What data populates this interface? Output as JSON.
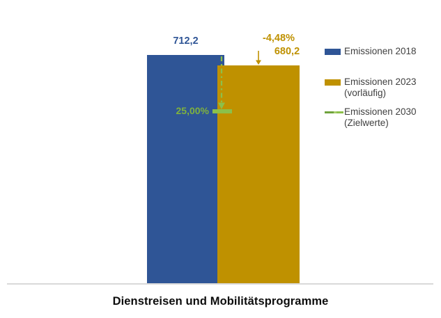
{
  "title": "Dienstreisen und Mobilitätsprogramme",
  "labels": {
    "value_2018": "712,2",
    "change_2023": "-4,48%",
    "value_2023": "680,2",
    "target_pct": "25,00%"
  },
  "legend": [
    {
      "line1": "Emissionen 2018",
      "line2": "",
      "swatch": "box",
      "color": "#2F5596"
    },
    {
      "line1": "Emissionen 2023",
      "line2": "(vorläufig)",
      "swatch": "box",
      "color": "#BF9100"
    },
    {
      "line1": "Emissionen 2030",
      "line2": "(Zielwerte)",
      "swatch": "dash-line",
      "color": "#8CC04A"
    }
  ],
  "colors": {
    "bar_2018": "#2F5596",
    "bar_2023": "#BF9100",
    "target_green": "#8CC04A",
    "target_text_green": "#7FB23E",
    "axis_gray": "#D9D9D9",
    "legend_text": "#404040"
  },
  "chart_data": {
    "type": "bar",
    "title": "Dienstreisen und Mobilitätsprogramme",
    "categories": [
      "Emissionen 2018",
      "Emissionen 2023 (vorläufig)"
    ],
    "values": [
      712.2,
      680.2
    ],
    "value_labels": [
      "712,2",
      "680,2"
    ],
    "change_vs_2018_pct": -4.48,
    "change_label": "-4,48%",
    "target_marker": {
      "name": "Emissionen 2030 (Zielwerte)",
      "reduction_pct_label": "25,00%",
      "reduction_pct": 25.0,
      "implied_value": 534.2
    },
    "ylim": [
      0,
      750
    ],
    "grid": false,
    "legend_position": "right",
    "xlabel": "",
    "ylabel": ""
  }
}
